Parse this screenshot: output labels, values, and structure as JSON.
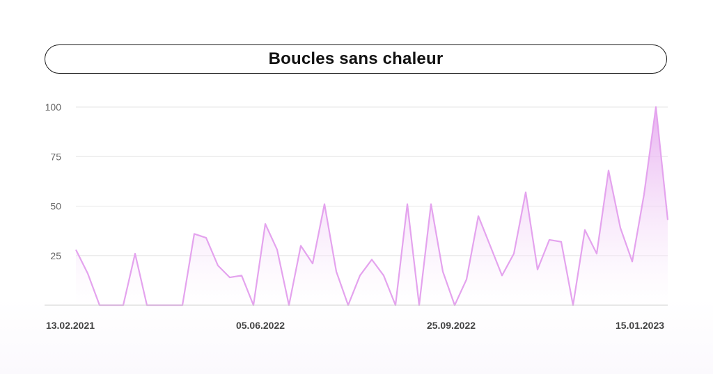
{
  "chart_data": {
    "type": "area",
    "title": "Boucles sans chaleur",
    "xlabel": "",
    "ylabel": "",
    "ylim": [
      0,
      100
    ],
    "yticks": [
      25,
      50,
      75,
      100
    ],
    "xtick_labels": [
      "13.02.2021",
      "05.06.2022",
      "25.09.2022",
      "15.01.2023"
    ],
    "grid": true,
    "colors": {
      "line": "#e4a3ee",
      "fill_top": "#e4a3ee",
      "fill_bottom": "#ffffff"
    },
    "series": [
      {
        "values": [
          28,
          16,
          0,
          0,
          0,
          26,
          0,
          0,
          0,
          0,
          36,
          34,
          20,
          14,
          15,
          0,
          41,
          28,
          0,
          30,
          21,
          51,
          17,
          0,
          15,
          23,
          15,
          0,
          51,
          0,
          51,
          17,
          0,
          13,
          45,
          30,
          15,
          26,
          57,
          18,
          33,
          32,
          0,
          38,
          26,
          68,
          39,
          22,
          56,
          100,
          43
        ]
      }
    ]
  }
}
